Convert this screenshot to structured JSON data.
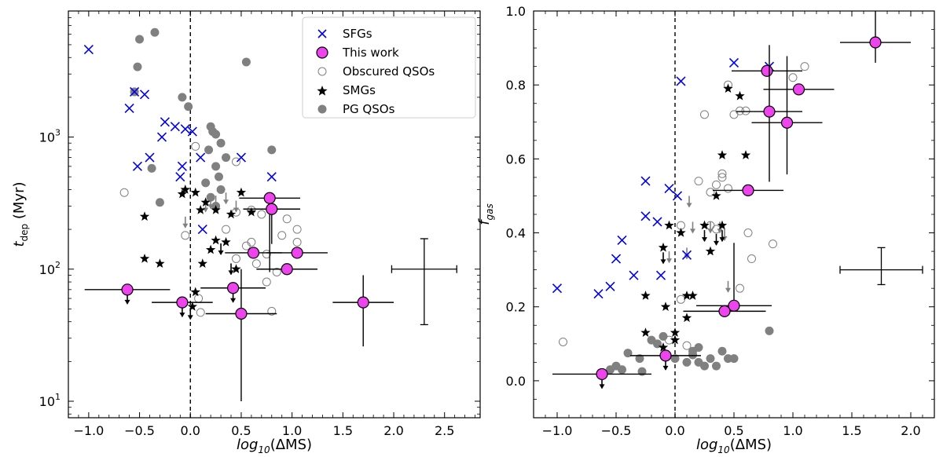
{
  "colors": {
    "sfg": "#0000ee",
    "thiswork": "#ee44ee",
    "smg": "#000000",
    "pg": "#808080",
    "qso_edge": "#808080"
  },
  "chart_data": [
    {
      "type": "scatter",
      "panel": "left",
      "xlabel_pre": "log",
      "xlabel_sub": "10",
      "xlabel_post": "(ΔMS)",
      "ylabel_pre": "t",
      "ylabel_sub": "dep",
      "ylabel_post": " (Myr)",
      "yscale": "log",
      "xlim": [
        -1.2,
        2.85
      ],
      "ylim": [
        7.5,
        9000
      ],
      "xticks": [
        -1.0,
        -0.5,
        0.0,
        0.5,
        1.0,
        1.5,
        2.0,
        2.5
      ],
      "xtick_labels": [
        "−1.0",
        "−0.5",
        "0.0",
        "0.5",
        "1.0",
        "1.5",
        "2.0",
        "2.5"
      ],
      "yticks_major": [
        10,
        100,
        1000
      ],
      "ytick_labels": [
        {
          "base": "10",
          "exp": "1"
        },
        {
          "base": "10",
          "exp": "2"
        },
        {
          "base": "10",
          "exp": "3"
        }
      ],
      "vline_x": 0.0,
      "legend": [
        "SFGs",
        "This work",
        "Obscured QSOs",
        "SMGs",
        "PG QSOs"
      ],
      "sfgs": [
        [
          -1.0,
          4600
        ],
        [
          -0.55,
          2200
        ],
        [
          -0.45,
          2100
        ],
        [
          -0.6,
          1650
        ],
        [
          -0.25,
          1300
        ],
        [
          -0.15,
          1200
        ],
        [
          -0.05,
          1150
        ],
        [
          0.02,
          1100
        ],
        [
          -0.28,
          1000
        ],
        [
          -0.4,
          700
        ],
        [
          -0.52,
          600
        ],
        [
          -0.08,
          600
        ],
        [
          -0.1,
          500
        ],
        [
          0.1,
          700
        ],
        [
          0.5,
          700
        ],
        [
          0.8,
          500
        ],
        [
          0.12,
          200
        ]
      ],
      "pg_qsos": [
        [
          -0.35,
          6200
        ],
        [
          -0.5,
          5500
        ],
        [
          -0.52,
          3400
        ],
        [
          -0.55,
          2200
        ],
        [
          -0.08,
          2000
        ],
        [
          -0.02,
          1700
        ],
        [
          0.55,
          3700
        ],
        [
          0.2,
          1200
        ],
        [
          0.22,
          1100
        ],
        [
          0.25,
          1050
        ],
        [
          0.3,
          900
        ],
        [
          0.18,
          800
        ],
        [
          0.35,
          700
        ],
        [
          0.25,
          600
        ],
        [
          0.28,
          500
        ],
        [
          0.15,
          450
        ],
        [
          0.3,
          400
        ],
        [
          0.2,
          350
        ],
        [
          0.8,
          800
        ],
        [
          -0.38,
          580
        ],
        [
          -0.3,
          320
        ],
        [
          0.25,
          300
        ]
      ],
      "obscured_qsos": [
        [
          -0.65,
          380
        ],
        [
          0.05,
          850
        ],
        [
          0.45,
          650
        ],
        [
          0.6,
          280
        ],
        [
          0.7,
          260
        ],
        [
          0.45,
          270
        ],
        [
          0.35,
          200
        ],
        [
          0.55,
          150
        ],
        [
          0.6,
          160
        ],
        [
          0.45,
          120
        ],
        [
          0.65,
          110
        ],
        [
          0.75,
          130
        ],
        [
          0.95,
          240
        ],
        [
          1.05,
          200
        ],
        [
          0.9,
          180
        ],
        [
          1.05,
          160
        ],
        [
          0.85,
          95
        ],
        [
          0.75,
          80
        ],
        [
          0.08,
          60
        ],
        [
          0.1,
          47
        ],
        [
          0.8,
          48
        ],
        [
          -0.05,
          180
        ]
      ],
      "smgs": [
        [
          -0.05,
          400
        ],
        [
          -0.08,
          370
        ],
        [
          0.05,
          380
        ],
        [
          0.15,
          320
        ],
        [
          0.1,
          280
        ],
        [
          0.25,
          280
        ],
        [
          0.4,
          260
        ],
        [
          0.5,
          380
        ],
        [
          0.25,
          165
        ],
        [
          0.35,
          160
        ],
        [
          0.2,
          140
        ],
        [
          -0.45,
          250
        ],
        [
          0.12,
          110
        ],
        [
          -0.45,
          120
        ],
        [
          -0.3,
          110
        ],
        [
          0.45,
          100
        ],
        [
          0.6,
          270
        ],
        [
          0.05,
          67
        ],
        [
          0.02,
          52
        ]
      ],
      "smg_upper": [
        [
          0.3,
          170
        ],
        [
          0.4,
          120
        ],
        [
          0.0,
          55
        ]
      ],
      "obscured_upper": [
        [
          0.35,
          380
        ],
        [
          0.25,
          360
        ],
        [
          0.2,
          350
        ],
        [
          0.15,
          330
        ],
        [
          0.45,
          330
        ],
        [
          -0.05,
          250
        ]
      ],
      "this_work": [
        {
          "x": 0.78,
          "y": 345,
          "xerr": [
            0.3,
            0.3
          ],
          "yerr_lo": 250,
          "yerr_hi": 0,
          "upper": false
        },
        {
          "x": 0.8,
          "y": 285,
          "xerr": [
            0.28,
            0.28
          ],
          "yerr_lo": 130,
          "yerr_hi": 0,
          "upper": false
        },
        {
          "x": 0.62,
          "y": 133,
          "xerr": [
            0.28,
            0.28
          ],
          "yerr_lo": 0,
          "yerr_hi": 0,
          "upper": false
        },
        {
          "x": 1.05,
          "y": 133,
          "xerr": [
            0.3,
            0.3
          ],
          "yerr_lo": 0,
          "yerr_hi": 0,
          "upper": false
        },
        {
          "x": 0.95,
          "y": 100,
          "xerr": [
            0.3,
            0.3
          ],
          "yerr_lo": 0,
          "yerr_hi": 0,
          "upper": false
        },
        {
          "x": -0.62,
          "y": 70,
          "xerr": [
            0.42,
            0.42
          ],
          "yerr_lo": 0,
          "yerr_hi": 0,
          "upper": true
        },
        {
          "x": -0.08,
          "y": 56,
          "xerr": [
            0.3,
            0.3
          ],
          "yerr_lo": 0,
          "yerr_hi": 0,
          "upper": true
        },
        {
          "x": 0.42,
          "y": 72,
          "xerr": [
            0.32,
            0.32
          ],
          "yerr_lo": 0,
          "yerr_hi": 0,
          "upper": true
        },
        {
          "x": 0.5,
          "y": 46,
          "xerr": [
            0.35,
            0.35
          ],
          "yerr_lo": 36,
          "yerr_hi": 54,
          "upper": false
        },
        {
          "x": 1.7,
          "y": 56,
          "xerr": [
            0.3,
            0.3
          ],
          "yerr_lo": 30,
          "yerr_hi": 34,
          "upper": false
        }
      ],
      "errbar": {
        "x": 2.3,
        "y": 100,
        "xerr": 0.32,
        "ylo": 38,
        "yhi": 170
      }
    },
    {
      "type": "scatter",
      "panel": "right",
      "xlabel_pre": "log",
      "xlabel_sub": "10",
      "xlabel_post": "(ΔMS)",
      "ylabel_pre": "f",
      "ylabel_sub": "gas",
      "ylabel_post": "",
      "yscale": "linear",
      "xlim": [
        -1.2,
        2.2
      ],
      "ylim": [
        -0.1,
        1.0
      ],
      "xticks": [
        -1.0,
        -0.5,
        0.0,
        0.5,
        1.0,
        1.5,
        2.0
      ],
      "xtick_labels": [
        "−1.0",
        "−0.5",
        "0.0",
        "0.5",
        "1.0",
        "1.5",
        "2.0"
      ],
      "yticks_major": [
        0.0,
        0.2,
        0.4,
        0.6,
        0.8,
        1.0
      ],
      "ytick_labels": [
        "0.0",
        "0.2",
        "0.4",
        "0.6",
        "0.8",
        "1.0"
      ],
      "vline_x": 0.0,
      "sfgs": [
        [
          -1.0,
          0.25
        ],
        [
          -0.65,
          0.235
        ],
        [
          -0.55,
          0.255
        ],
        [
          -0.45,
          0.38
        ],
        [
          -0.35,
          0.285
        ],
        [
          -0.5,
          0.33
        ],
        [
          -0.25,
          0.445
        ],
        [
          -0.25,
          0.54
        ],
        [
          -0.15,
          0.43
        ],
        [
          -0.05,
          0.52
        ],
        [
          0.02,
          0.5
        ],
        [
          -0.12,
          0.285
        ],
        [
          0.05,
          0.81
        ],
        [
          0.1,
          0.34
        ],
        [
          0.5,
          0.86
        ],
        [
          0.8,
          0.85
        ]
      ],
      "pg_qsos": [
        [
          -0.1,
          0.12
        ],
        [
          -0.15,
          0.1
        ],
        [
          -0.2,
          0.11
        ],
        [
          -0.3,
          0.06
        ],
        [
          -0.4,
          0.075
        ],
        [
          -0.45,
          0.03
        ],
        [
          -0.5,
          0.04
        ],
        [
          -0.55,
          0.03
        ],
        [
          0.0,
          0.06
        ],
        [
          0.1,
          0.05
        ],
        [
          0.15,
          0.08
        ],
        [
          0.2,
          0.09
        ],
        [
          0.3,
          0.06
        ],
        [
          0.2,
          0.05
        ],
        [
          0.25,
          0.04
        ],
        [
          0.35,
          0.04
        ],
        [
          0.4,
          0.08
        ],
        [
          0.5,
          0.06
        ],
        [
          0.45,
          0.06
        ],
        [
          0.8,
          0.135
        ],
        [
          -0.28,
          0.025
        ],
        [
          0.15,
          0.07
        ]
      ],
      "obscured_qsos": [
        [
          -0.95,
          0.105
        ],
        [
          0.25,
          0.72
        ],
        [
          0.3,
          0.51
        ],
        [
          0.2,
          0.54
        ],
        [
          0.4,
          0.55
        ],
        [
          0.45,
          0.8
        ],
        [
          0.5,
          0.72
        ],
        [
          0.55,
          0.73
        ],
        [
          0.6,
          0.73
        ],
        [
          0.4,
          0.56
        ],
        [
          0.35,
          0.53
        ],
        [
          0.45,
          0.52
        ],
        [
          0.3,
          0.42
        ],
        [
          0.35,
          0.41
        ],
        [
          0.55,
          0.25
        ],
        [
          0.62,
          0.4
        ],
        [
          0.65,
          0.33
        ],
        [
          0.83,
          0.37
        ],
        [
          1.0,
          0.82
        ],
        [
          1.1,
          0.85
        ],
        [
          0.05,
          0.22
        ],
        [
          0.05,
          0.42
        ],
        [
          0.1,
          0.095
        ],
        [
          -0.05,
          0.11
        ]
      ],
      "smgs": [
        [
          0.45,
          0.79
        ],
        [
          0.55,
          0.77
        ],
        [
          0.4,
          0.61
        ],
        [
          0.6,
          0.61
        ],
        [
          0.35,
          0.5
        ],
        [
          0.4,
          0.42
        ],
        [
          0.3,
          0.35
        ],
        [
          0.25,
          0.42
        ],
        [
          -0.05,
          0.42
        ],
        [
          0.05,
          0.4
        ],
        [
          -0.1,
          0.36
        ],
        [
          0.1,
          0.23
        ],
        [
          -0.25,
          0.23
        ],
        [
          -0.08,
          0.2
        ],
        [
          0.15,
          0.23
        ],
        [
          -0.25,
          0.13
        ],
        [
          0.0,
          0.13
        ],
        [
          -0.1,
          0.09
        ],
        [
          0.1,
          0.17
        ],
        [
          0.0,
          0.11
        ]
      ],
      "smg_upper": [
        [
          0.25,
          0.42
        ],
        [
          0.35,
          0.41
        ],
        [
          -0.1,
          0.36
        ],
        [
          0.4,
          0.42
        ]
      ],
      "obscured_upper": [
        [
          0.12,
          0.5
        ],
        [
          0.15,
          0.43
        ],
        [
          0.3,
          0.43
        ],
        [
          0.38,
          0.43
        ],
        [
          0.42,
          0.41
        ],
        [
          0.1,
          0.36
        ],
        [
          -0.05,
          0.35
        ],
        [
          0.45,
          0.27
        ]
      ],
      "this_work": [
        {
          "x": 1.7,
          "y": 0.915,
          "xerr": [
            0.3,
            0.3
          ],
          "yerr_lo": 0.055,
          "yerr_hi": 0.085,
          "upper": false
        },
        {
          "x": 0.78,
          "y": 0.838,
          "xerr": [
            0.3,
            0.3
          ],
          "yerr_lo": 0.0,
          "yerr_hi": 0.0,
          "upper": false
        },
        {
          "x": 1.05,
          "y": 0.788,
          "xerr": [
            0.3,
            0.3
          ],
          "yerr_lo": 0.0,
          "yerr_hi": 0.0,
          "upper": false
        },
        {
          "x": 0.8,
          "y": 0.728,
          "xerr": [
            0.28,
            0.28
          ],
          "yerr_lo": 0.19,
          "yerr_hi": 0.18,
          "upper": false
        },
        {
          "x": 0.95,
          "y": 0.698,
          "xerr": [
            0.3,
            0.3
          ],
          "yerr_lo": 0.14,
          "yerr_hi": 0.18,
          "upper": false
        },
        {
          "x": 0.62,
          "y": 0.515,
          "xerr": [
            0.3,
            0.3
          ],
          "yerr_lo": 0.0,
          "yerr_hi": 0.0,
          "upper": false
        },
        {
          "x": 0.5,
          "y": 0.203,
          "xerr": [
            0.32,
            0.32
          ],
          "yerr_lo": 0.0,
          "yerr_hi": 0.17,
          "upper": false
        },
        {
          "x": 0.42,
          "y": 0.188,
          "xerr": [
            0.35,
            0.35
          ],
          "yerr_lo": 0.0,
          "yerr_hi": 0.0,
          "upper": false
        },
        {
          "x": -0.08,
          "y": 0.068,
          "xerr": [
            0.3,
            0.3
          ],
          "yerr_lo": 0.0,
          "yerr_hi": 0.0,
          "upper": true
        },
        {
          "x": -0.62,
          "y": 0.018,
          "xerr": [
            0.42,
            0.42
          ],
          "yerr_lo": 0.0,
          "yerr_hi": 0.0,
          "upper": true
        }
      ],
      "errbar": {
        "x": 1.75,
        "y": 0.3,
        "xerr": 0.35,
        "ylo": 0.26,
        "yhi": 0.36
      }
    }
  ]
}
